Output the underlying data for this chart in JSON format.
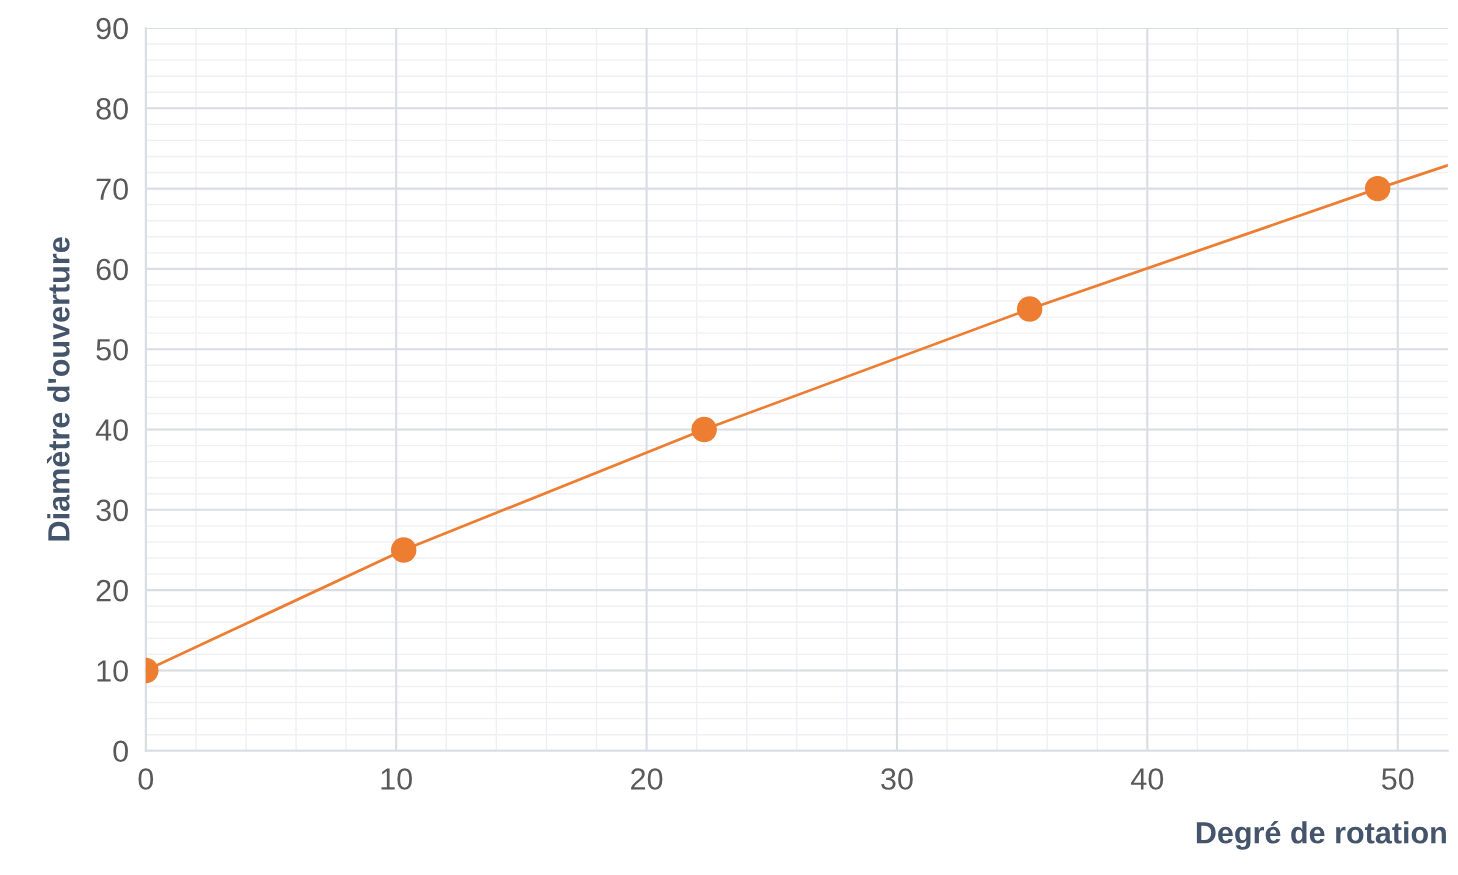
{
  "chart_data": {
    "type": "line",
    "xlabel": "Degré de rotation",
    "ylabel": "Diamètre d'ouverture",
    "series": [
      {
        "type": "scatter",
        "color": "#ed7d31",
        "x": [
          0,
          10.3,
          22.3,
          35.3,
          49.2
        ],
        "values": [
          10,
          25,
          40,
          55,
          70
        ],
        "marker": "circle"
      },
      {
        "color": "#ed7d31",
        "x": [
          0,
          10.3,
          22.3,
          35.3,
          49.2,
          52
        ],
        "values": [
          10,
          25,
          40,
          55,
          70,
          72.9
        ],
        "marker": "none"
      }
    ],
    "xlim": [
      0,
      52
    ],
    "ylim": [
      0,
      90
    ],
    "xticks": [
      0,
      10,
      20,
      30,
      40,
      50
    ],
    "yticks": [
      0,
      10,
      20,
      30,
      40,
      50,
      60,
      70,
      80,
      90
    ],
    "grid": true,
    "line_style": "solid"
  }
}
